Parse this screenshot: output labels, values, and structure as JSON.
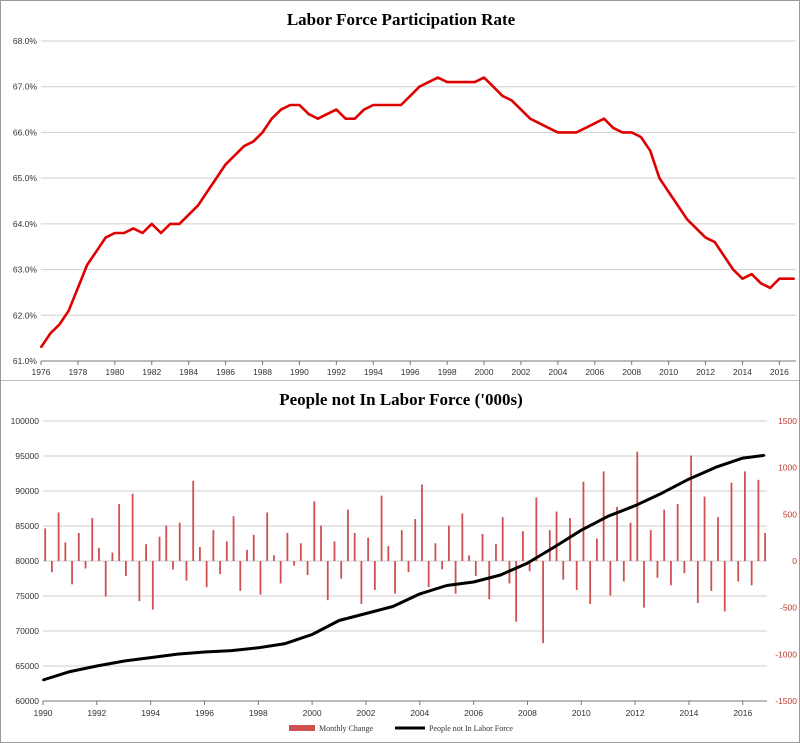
{
  "chart_data": [
    {
      "type": "line",
      "title": "Labor Force Participation Rate",
      "xlabel": "",
      "ylabel": "",
      "x_ticks": [
        "1976",
        "1978",
        "1980",
        "1982",
        "1984",
        "1986",
        "1988",
        "1990",
        "1992",
        "1994",
        "1996",
        "1998",
        "2000",
        "2002",
        "2004",
        "2006",
        "2008",
        "2010",
        "2012",
        "2014",
        "2016"
      ],
      "y_ticks": [
        "61.0%",
        "62.0%",
        "63.0%",
        "64.0%",
        "65.0%",
        "66.0%",
        "67.0%",
        "68.0%"
      ],
      "xlim": [
        1976,
        2016.9
      ],
      "ylim": [
        61.0,
        68.0
      ],
      "grid": "horizontal",
      "color": "#e00000",
      "series": [
        {
          "name": "",
          "x": [
            1976.0,
            1976.5,
            1977.0,
            1977.5,
            1978.0,
            1978.5,
            1979.0,
            1979.5,
            1980.0,
            1980.5,
            1981.0,
            1981.5,
            1982.0,
            1982.5,
            1983.0,
            1983.5,
            1984.0,
            1984.5,
            1985.0,
            1985.5,
            1986.0,
            1986.5,
            1987.0,
            1987.5,
            1988.0,
            1988.5,
            1989.0,
            1989.5,
            1990.0,
            1990.5,
            1991.0,
            1991.5,
            1992.0,
            1992.5,
            1993.0,
            1993.5,
            1994.0,
            1994.5,
            1995.0,
            1995.5,
            1996.0,
            1996.5,
            1997.0,
            1997.5,
            1998.0,
            1998.5,
            1999.0,
            1999.5,
            2000.0,
            2000.5,
            2001.0,
            2001.5,
            2002.0,
            2002.5,
            2003.0,
            2003.5,
            2004.0,
            2004.5,
            2005.0,
            2005.5,
            2006.0,
            2006.5,
            2007.0,
            2007.5,
            2008.0,
            2008.5,
            2009.0,
            2009.5,
            2010.0,
            2010.5,
            2011.0,
            2011.5,
            2012.0,
            2012.5,
            2013.0,
            2013.5,
            2014.0,
            2014.5,
            2015.0,
            2015.5,
            2016.0,
            2016.5,
            2016.8
          ],
          "y": [
            61.3,
            61.6,
            61.8,
            62.1,
            62.6,
            63.1,
            63.4,
            63.7,
            63.8,
            63.8,
            63.9,
            63.8,
            64.0,
            63.8,
            64.0,
            64.0,
            64.2,
            64.4,
            64.7,
            65.0,
            65.3,
            65.5,
            65.7,
            65.8,
            66.0,
            66.3,
            66.5,
            66.6,
            66.6,
            66.4,
            66.3,
            66.4,
            66.5,
            66.3,
            66.3,
            66.5,
            66.6,
            66.6,
            66.6,
            66.6,
            66.8,
            67.0,
            67.1,
            67.2,
            67.1,
            67.1,
            67.1,
            67.1,
            67.2,
            67.0,
            66.8,
            66.7,
            66.5,
            66.3,
            66.2,
            66.1,
            66.0,
            66.0,
            66.0,
            66.1,
            66.2,
            66.3,
            66.1,
            66.0,
            66.0,
            65.9,
            65.6,
            65.0,
            64.7,
            64.4,
            64.1,
            63.9,
            63.7,
            63.6,
            63.3,
            63.0,
            62.8,
            62.9,
            62.7,
            62.6,
            62.8,
            62.8,
            62.8
          ]
        }
      ]
    },
    {
      "type": "bar+line",
      "title": "People not In Labor Force ('000s)",
      "xlabel": "",
      "ylabel": "",
      "x_ticks": [
        "1990",
        "1992",
        "1994",
        "1996",
        "1998",
        "2000",
        "2002",
        "2004",
        "2006",
        "2008",
        "2010",
        "2012",
        "2014",
        "2016"
      ],
      "y_ticks_left": [
        "60000",
        "65000",
        "70000",
        "75000",
        "80000",
        "85000",
        "90000",
        "95000",
        "100000"
      ],
      "y_ticks_right": [
        "-1500",
        "-1000",
        "-500",
        "0",
        "500",
        "1000",
        "1500"
      ],
      "xlim": [
        1990,
        2016.9
      ],
      "ylim_left": [
        60000,
        100000
      ],
      "ylim_right": [
        -1500,
        1500
      ],
      "grid": "horizontal",
      "legend": {
        "position": "bottom",
        "items": [
          {
            "label": "Monthly Change",
            "color": "#d05050",
            "kind": "bar"
          },
          {
            "label": "People not In Labor Force",
            "color": "#000000",
            "kind": "line"
          }
        ]
      },
      "series": [
        {
          "name": "People not In Labor Force",
          "axis": "left",
          "color": "#000000",
          "x": [
            1990.0,
            1991.0,
            1992.0,
            1993.0,
            1994.0,
            1995.0,
            1996.0,
            1997.0,
            1998.0,
            1999.0,
            2000.0,
            2001.0,
            2002.0,
            2003.0,
            2004.0,
            2005.0,
            2006.0,
            2007.0,
            2008.0,
            2009.0,
            2010.0,
            2011.0,
            2012.0,
            2013.0,
            2014.0,
            2015.0,
            2016.0,
            2016.8
          ],
          "y": [
            63000,
            64200,
            65000,
            65700,
            66200,
            66700,
            67000,
            67200,
            67600,
            68200,
            69500,
            71500,
            72500,
            73500,
            75300,
            76500,
            77000,
            78000,
            79700,
            82000,
            84400,
            86400,
            87900,
            89700,
            91700,
            93400,
            94700,
            95100
          ]
        },
        {
          "name": "Monthly Change",
          "axis": "right",
          "color": "#d05050",
          "x": [
            1990.08,
            1990.33,
            1990.58,
            1990.83,
            1991.08,
            1991.33,
            1991.58,
            1991.83,
            1992.08,
            1992.33,
            1992.58,
            1992.83,
            1993.08,
            1993.33,
            1993.58,
            1993.83,
            1994.08,
            1994.33,
            1994.58,
            1994.83,
            1995.08,
            1995.33,
            1995.58,
            1995.83,
            1996.08,
            1996.33,
            1996.58,
            1996.83,
            1997.08,
            1997.33,
            1997.58,
            1997.83,
            1998.08,
            1998.33,
            1998.58,
            1998.83,
            1999.08,
            1999.33,
            1999.58,
            1999.83,
            2000.08,
            2000.33,
            2000.58,
            2000.83,
            2001.08,
            2001.33,
            2001.58,
            2001.83,
            2002.08,
            2002.33,
            2002.58,
            2002.83,
            2003.08,
            2003.33,
            2003.58,
            2003.83,
            2004.08,
            2004.33,
            2004.58,
            2004.83,
            2005.08,
            2005.33,
            2005.58,
            2005.83,
            2006.08,
            2006.33,
            2006.58,
            2006.83,
            2007.08,
            2007.33,
            2007.58,
            2007.83,
            2008.08,
            2008.33,
            2008.58,
            2008.83,
            2009.08,
            2009.33,
            2009.58,
            2009.83,
            2010.08,
            2010.33,
            2010.58,
            2010.83,
            2011.08,
            2011.33,
            2011.58,
            2011.83,
            2012.08,
            2012.33,
            2012.58,
            2012.83,
            2013.08,
            2013.33,
            2013.58,
            2013.83,
            2014.08,
            2014.33,
            2014.58,
            2014.83,
            2015.08,
            2015.33,
            2015.58,
            2015.83,
            2016.08,
            2016.33,
            2016.58,
            2016.83
          ],
          "y": [
            350,
            -120,
            520,
            200,
            -250,
            300,
            -80,
            460,
            140,
            -380,
            90,
            610,
            -160,
            720,
            -430,
            180,
            -520,
            260,
            380,
            -90,
            410,
            -210,
            860,
            150,
            -280,
            330,
            -140,
            210,
            480,
            -320,
            120,
            280,
            -360,
            520,
            60,
            -240,
            300,
            -50,
            190,
            -150,
            640,
            380,
            -420,
            210,
            -190,
            550,
            300,
            -460,
            250,
            -310,
            700,
            160,
            -350,
            330,
            -120,
            450,
            820,
            -280,
            190,
            -90,
            380,
            -350,
            510,
            60,
            -160,
            290,
            -410,
            180,
            470,
            -240,
            -650,
            320,
            -110,
            680,
            -880,
            330,
            530,
            -200,
            460,
            -310,
            850,
            -460,
            240,
            960,
            -370,
            580,
            -220,
            410,
            1170,
            -500,
            330,
            -180,
            550,
            -260,
            610,
            -130,
            1130,
            -450,
            690,
            -320,
            470,
            -540,
            840,
            -220,
            960,
            -260,
            870,
            300
          ]
        }
      ]
    }
  ]
}
